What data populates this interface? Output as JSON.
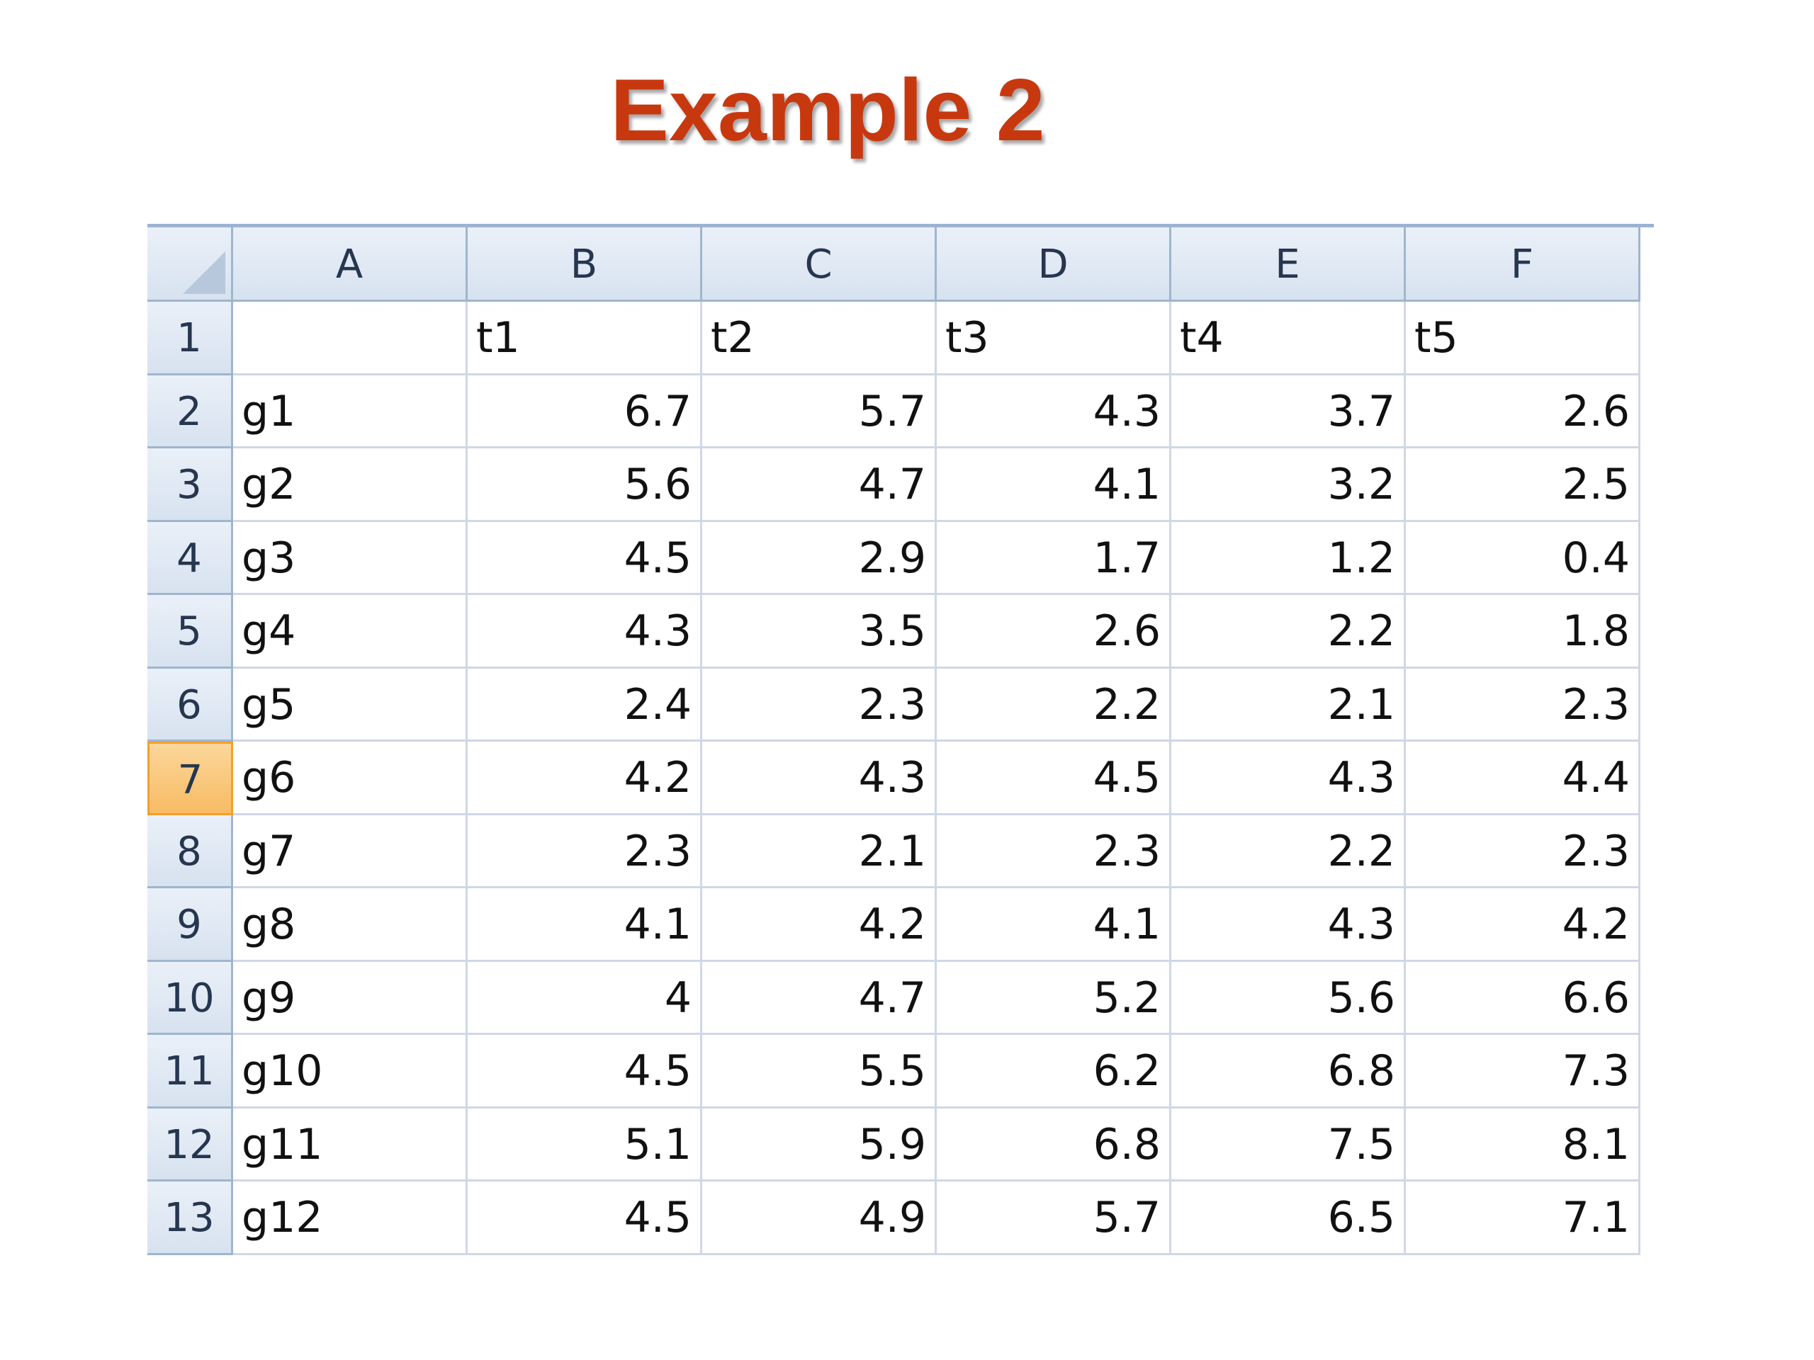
{
  "title": "Example 2",
  "spreadsheet": {
    "column_headers": [
      "A",
      "B",
      "C",
      "D",
      "E",
      "F"
    ],
    "row_headers": [
      1,
      2,
      3,
      4,
      5,
      6,
      7,
      8,
      9,
      10,
      11,
      12,
      13
    ],
    "selected_row": 7,
    "header_row": [
      "t1",
      "t2",
      "t3",
      "t4",
      "t5"
    ],
    "rows": [
      {
        "label": "g1",
        "values": [
          6.7,
          5.7,
          4.3,
          3.7,
          2.6
        ]
      },
      {
        "label": "g2",
        "values": [
          5.6,
          4.7,
          4.1,
          3.2,
          2.5
        ]
      },
      {
        "label": "g3",
        "values": [
          4.5,
          2.9,
          1.7,
          1.2,
          0.4
        ]
      },
      {
        "label": "g4",
        "values": [
          4.3,
          3.5,
          2.6,
          2.2,
          1.8
        ]
      },
      {
        "label": "g5",
        "values": [
          2.4,
          2.3,
          2.2,
          2.1,
          2.3
        ]
      },
      {
        "label": "g6",
        "values": [
          4.2,
          4.3,
          4.5,
          4.3,
          4.4
        ]
      },
      {
        "label": "g7",
        "values": [
          2.3,
          2.1,
          2.3,
          2.2,
          2.3
        ]
      },
      {
        "label": "g8",
        "values": [
          4.1,
          4.2,
          4.1,
          4.3,
          4.2
        ]
      },
      {
        "label": "g9",
        "values": [
          4,
          4.7,
          5.2,
          5.6,
          6.6
        ]
      },
      {
        "label": "g10",
        "values": [
          4.5,
          5.5,
          6.2,
          6.8,
          7.3
        ]
      },
      {
        "label": "g11",
        "values": [
          5.1,
          5.9,
          6.8,
          7.5,
          8.1
        ]
      },
      {
        "label": "g12",
        "values": [
          4.5,
          4.9,
          5.7,
          6.5,
          7.1
        ]
      }
    ]
  }
}
